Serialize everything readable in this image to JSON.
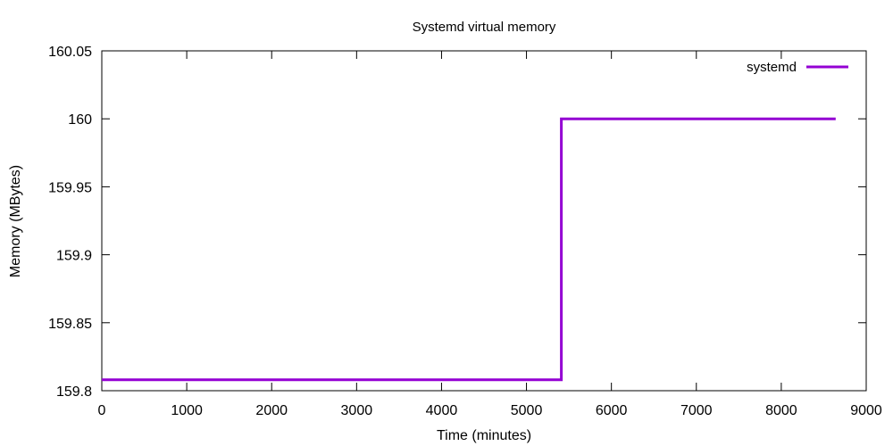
{
  "chart_data": {
    "type": "line",
    "title": "Systemd virtual memory",
    "xlabel": "Time (minutes)",
    "ylabel": "Memory (MBytes)",
    "xlim": [
      0,
      9000
    ],
    "ylim": [
      159.8,
      160.05
    ],
    "x_ticks": [
      "0",
      "1000",
      "2000",
      "3000",
      "4000",
      "5000",
      "6000",
      "7000",
      "8000",
      "9000"
    ],
    "y_ticks": [
      "159.8",
      "159.85",
      "159.9",
      "159.95",
      "160",
      "160.05"
    ],
    "grid": false,
    "legend_position": "top-right",
    "series": [
      {
        "name": "systemd",
        "color": "#9400d3",
        "x": [
          0,
          5410,
          5410,
          8640
        ],
        "y": [
          159.808,
          159.808,
          160.0,
          160.0
        ]
      }
    ]
  }
}
